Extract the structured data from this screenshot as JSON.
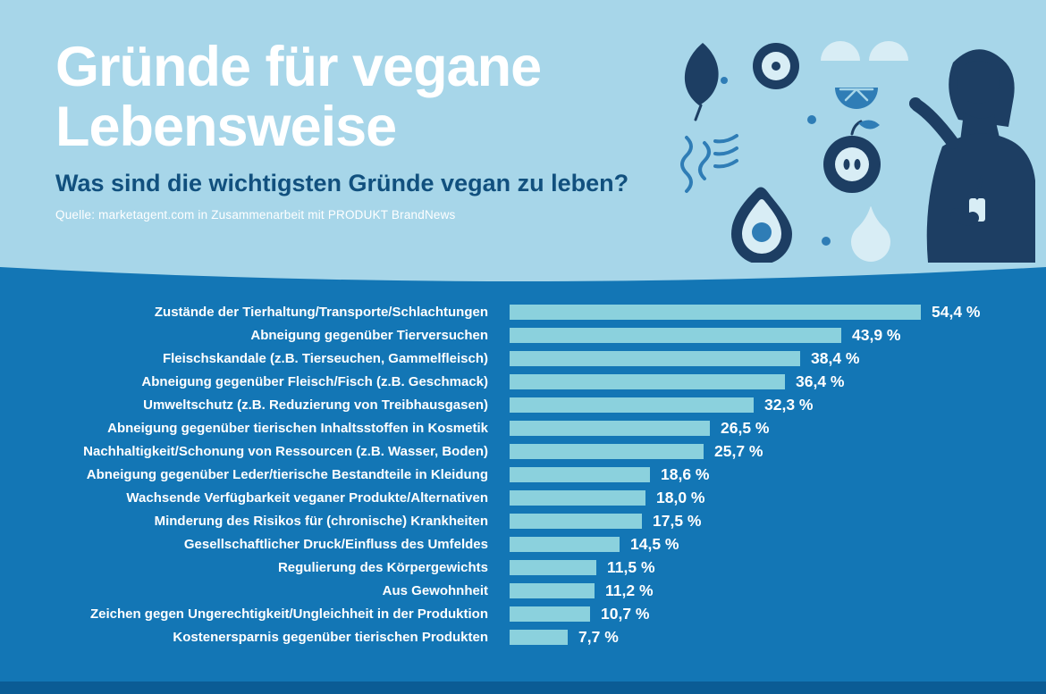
{
  "header": {
    "title_line1": "Gründe für vegane",
    "title_line2": "Lebensweise",
    "subtitle": "Was sind die wichtigsten Gründe vegan zu leben?",
    "source": "Quelle: marketagent.com in Zusammenarbeit mit PRODUKT BrandNews"
  },
  "colors": {
    "header_bg": "#a7d6e9",
    "body_bg": "#1376b5",
    "bar": "#8bd1dd",
    "title": "#ffffff",
    "subtitle": "#11507e",
    "footer_strip": "#0b5c95",
    "ill_dark": "#1d3e63",
    "ill_mid": "#2f7db6",
    "ill_pale": "#d8edf5"
  },
  "illustration": {
    "icons": [
      "leaf-icon",
      "seaweed-icon",
      "kiwi-icon",
      "kiwi-half-icon",
      "lime-icon",
      "apple-icon",
      "avocado-icon",
      "pear-icon",
      "berry-icon",
      "woman-with-smoothie"
    ]
  },
  "chart_data": {
    "type": "bar",
    "orientation": "horizontal",
    "title": "Gründe für vegane Lebensweise",
    "subtitle": "Was sind die wichtigsten Gründe vegan zu leben?",
    "source": "Quelle: marketagent.com in Zusammenarbeit mit PRODUKT BrandNews",
    "unit": "%",
    "xlim": [
      0,
      60
    ],
    "grid": false,
    "legend": false,
    "categories": [
      "Zustände der Tierhaltung/Transporte/Schlachtungen",
      "Abneigung gegenüber Tierversuchen",
      "Fleischskandale (z.B. Tierseuchen, Gammelfleisch)",
      "Abneigung gegenüber Fleisch/Fisch (z.B. Geschmack)",
      "Umweltschutz (z.B. Reduzierung von Treibhausgasen)",
      "Abneigung gegenüber tierischen Inhaltsstoffen in Kosmetik",
      "Nachhaltigkeit/Schonung von Ressourcen (z.B. Wasser, Boden)",
      "Abneigung gegenüber Leder/tierische Bestandteile in Kleidung",
      "Wachsende Verfügbarkeit veganer Produkte/Alternativen",
      "Minderung des Risikos für (chronische) Krankheiten",
      "Gesellschaftlicher Druck/Einfluss des Umfeldes",
      "Regulierung des Körpergewichts",
      "Aus Gewohnheit",
      "Zeichen gegen Ungerechtigkeit/Ungleichheit in der Produktion",
      "Kostenersparnis gegenüber tierischen Produkten"
    ],
    "values": [
      54.4,
      43.9,
      38.4,
      36.4,
      32.3,
      26.5,
      25.7,
      18.6,
      18.0,
      17.5,
      14.5,
      11.5,
      11.2,
      10.7,
      7.7
    ],
    "value_labels": [
      "54,4 %",
      "43,9 %",
      "38,4 %",
      "36,4 %",
      "32,3 %",
      "26,5 %",
      "25,7 %",
      "18,6 %",
      "18,0 %",
      "17,5 %",
      "14,5 %",
      "11,5 %",
      "11,2 %",
      "10,7 %",
      "7,7 %"
    ]
  }
}
